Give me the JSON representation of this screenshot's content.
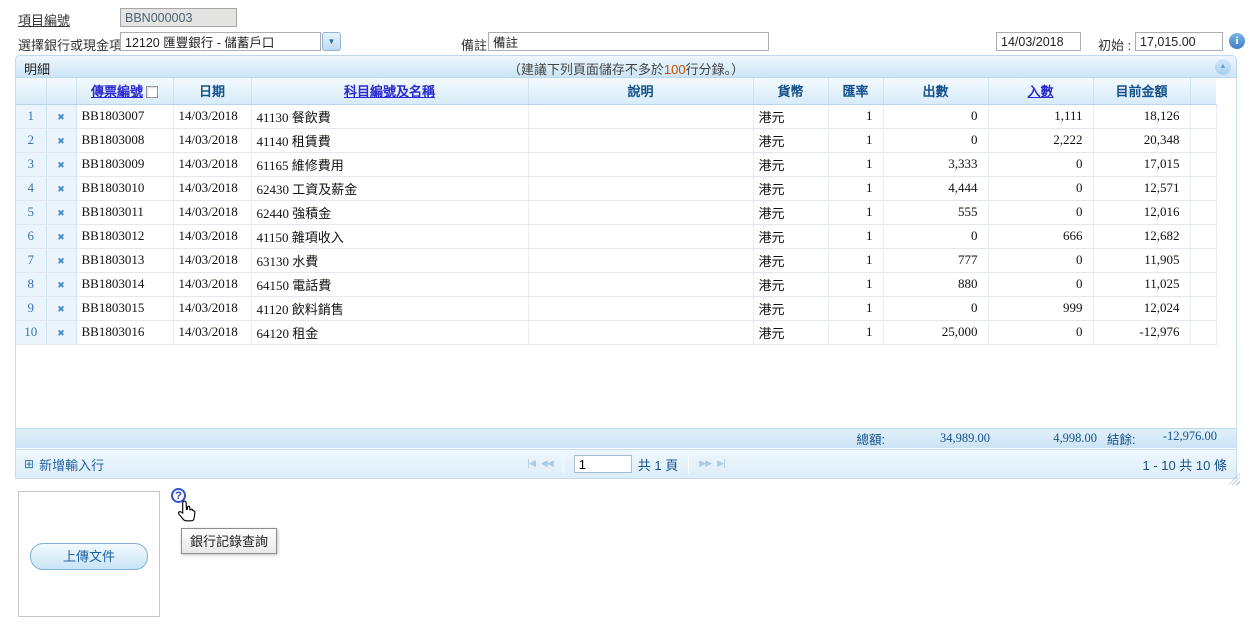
{
  "form": {
    "project_label": "項目編號",
    "project_value": "BBN000003",
    "bank_label": "選擇銀行或現金項目",
    "bank_value": "12120 匯豐銀行 - 儲蓄戶口",
    "remark_label": "備註",
    "remark_value": "備註",
    "date_value": "14/03/2018",
    "initial_label": "初始 :",
    "initial_value": "17,015.00"
  },
  "panel": {
    "title": "明細",
    "note_prefix": "（建議下列頁面儲存不多於",
    "note_highlight": "100",
    "note_suffix": "行分錄。）"
  },
  "table": {
    "col_voucher": "傳票編號",
    "col_date": "日期",
    "col_account": "科目編號及名稱",
    "col_desc": "說明",
    "col_currency": "貨幣",
    "col_rate": "匯率",
    "col_out": "出數",
    "col_in": "入數",
    "col_balance": "目前金額",
    "rows": [
      {
        "num": "1",
        "voucher": "BB1803007",
        "date": "14/03/2018",
        "account": "41130 餐飲費",
        "desc": "",
        "currency": "港元",
        "rate": "1",
        "out": "0",
        "in": "1,111",
        "balance": "18,126"
      },
      {
        "num": "2",
        "voucher": "BB1803008",
        "date": "14/03/2018",
        "account": "41140 租賃費",
        "desc": "",
        "currency": "港元",
        "rate": "1",
        "out": "0",
        "in": "2,222",
        "balance": "20,348"
      },
      {
        "num": "3",
        "voucher": "BB1803009",
        "date": "14/03/2018",
        "account": "61165 維修費用",
        "desc": "",
        "currency": "港元",
        "rate": "1",
        "out": "3,333",
        "in": "0",
        "balance": "17,015"
      },
      {
        "num": "4",
        "voucher": "BB1803010",
        "date": "14/03/2018",
        "account": "62430 工資及薪金",
        "desc": "",
        "currency": "港元",
        "rate": "1",
        "out": "4,444",
        "in": "0",
        "balance": "12,571"
      },
      {
        "num": "5",
        "voucher": "BB1803011",
        "date": "14/03/2018",
        "account": "62440 強積金",
        "desc": "",
        "currency": "港元",
        "rate": "1",
        "out": "555",
        "in": "0",
        "balance": "12,016"
      },
      {
        "num": "6",
        "voucher": "BB1803012",
        "date": "14/03/2018",
        "account": "41150 雜項收入",
        "desc": "",
        "currency": "港元",
        "rate": "1",
        "out": "0",
        "in": "666",
        "balance": "12,682"
      },
      {
        "num": "7",
        "voucher": "BB1803013",
        "date": "14/03/2018",
        "account": "63130 水費",
        "desc": "",
        "currency": "港元",
        "rate": "1",
        "out": "777",
        "in": "0",
        "balance": "11,905"
      },
      {
        "num": "8",
        "voucher": "BB1803014",
        "date": "14/03/2018",
        "account": "64150 電話費",
        "desc": "",
        "currency": "港元",
        "rate": "1",
        "out": "880",
        "in": "0",
        "balance": "11,025"
      },
      {
        "num": "9",
        "voucher": "BB1803015",
        "date": "14/03/2018",
        "account": "41120 飲料銷售",
        "desc": "",
        "currency": "港元",
        "rate": "1",
        "out": "0",
        "in": "999",
        "balance": "12,024"
      },
      {
        "num": "10",
        "voucher": "BB1803016",
        "date": "14/03/2018",
        "account": "64120 租金",
        "desc": "",
        "currency": "港元",
        "rate": "1",
        "out": "25,000",
        "in": "0",
        "balance": "-12,976"
      }
    ],
    "totals": {
      "label": "總額:",
      "out": "34,989.00",
      "in": "4,998.00",
      "balance_label": "結餘:",
      "balance": "-12,976.00"
    }
  },
  "pagination": {
    "add_row_label": "新增輸入行",
    "page_value": "1",
    "total_pages_label": "共 1 頁",
    "range_label": "1 - 10 共 10 條"
  },
  "footer": {
    "upload_button": "上傳文件",
    "tooltip": "銀行記錄查詢"
  },
  "icons": {
    "delete": "✖",
    "dropdown": "▼",
    "collapse": "▲",
    "info": "i",
    "help": "?",
    "add_row": "⊞",
    "first": "|◀",
    "prev": "◀◀",
    "next": "▶▶",
    "last": "▶|"
  },
  "colors": {
    "link": "#2a2ad0",
    "header_text": "#15518b",
    "note_highlight": "#cc5200",
    "panel_border": "#bcd9ee"
  }
}
